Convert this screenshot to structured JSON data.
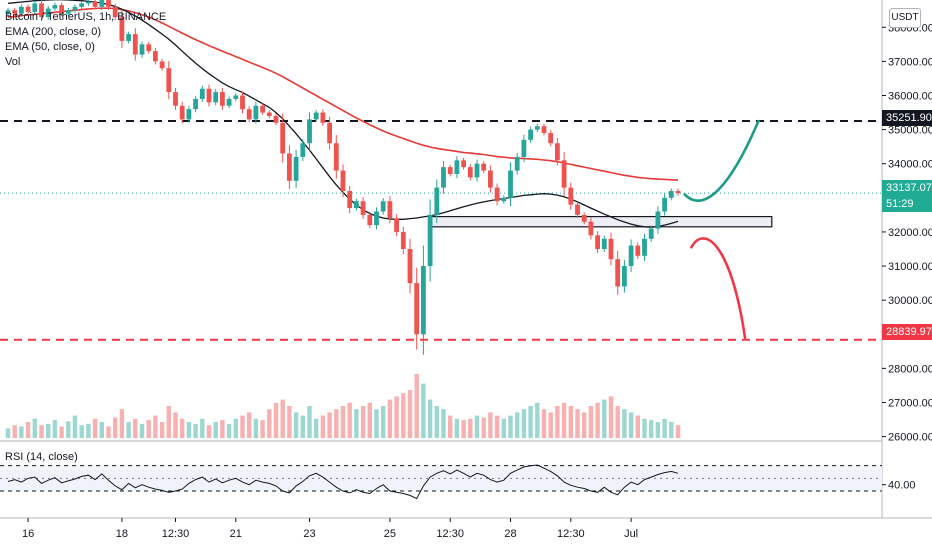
{
  "header": {
    "title": "Bitcoin / TetherUS, 1h, BINANCE",
    "ema200": "EMA (200, close, 0)",
    "ema50": "EMA (50, close, 0)",
    "vol": "Vol",
    "currency": "USDT"
  },
  "rsi_panel": {
    "title": "RSI (14, close)",
    "level_label": "40.00"
  },
  "price_labels": {
    "resistance": "35251.90",
    "current": "33137.07",
    "countdown": "51:29",
    "support": "28839.97"
  },
  "colors": {
    "up": "#26a69a",
    "down": "#ef5350",
    "ema200": "#e53935",
    "ema50": "#131722",
    "rsi": "#131722",
    "bull_path": "#1b9b88",
    "bear_path": "#f23645",
    "current_line": "#26a69a",
    "resistance_line": "#131722",
    "support_line": "#f23645"
  },
  "chart_data": {
    "type": "candlestick",
    "symbol": "BTCUSDT",
    "timeframe": "1h",
    "ylim": [
      25900,
      38800
    ],
    "y_ticks": [
      26000,
      27000,
      28000,
      29000,
      30000,
      31000,
      32000,
      33000,
      34000,
      35000,
      36000,
      37000,
      38000
    ],
    "y_tick_labels": [
      "26000.00",
      "27000.00",
      "28000.00",
      "29000.00",
      "30000.00",
      "31000.00",
      "32000.00",
      "33000.00",
      "34000.00",
      "35000.00",
      "36000.00",
      "37000.00",
      "38000.00"
    ],
    "x_ticks": [
      {
        "label": "16",
        "i": 3
      },
      {
        "label": "18",
        "i": 17
      },
      {
        "label": "12:30",
        "i": 25
      },
      {
        "label": "21",
        "i": 34
      },
      {
        "label": "23",
        "i": 45
      },
      {
        "label": "25",
        "i": 57
      },
      {
        "label": "12:30",
        "i": 66
      },
      {
        "label": "28",
        "i": 75
      },
      {
        "label": "12:30",
        "i": 84
      },
      {
        "label": "Jul",
        "i": 93
      }
    ],
    "series": [
      {
        "name": "BTCUSDT",
        "close": [
          38500,
          38400,
          38600,
          38450,
          38700,
          38300,
          38550,
          38650,
          38400,
          38500,
          38600,
          38700,
          38750,
          38600,
          38900,
          38600,
          38300,
          37600,
          37800,
          37200,
          37500,
          37300,
          37000,
          36800,
          36100,
          35700,
          35300,
          35600,
          35900,
          36200,
          35800,
          36100,
          35700,
          35900,
          36000,
          35600,
          35300,
          35700,
          35500,
          35400,
          35200,
          34300,
          33500,
          34200,
          34600,
          35300,
          35500,
          35200,
          34600,
          33800,
          33200,
          32700,
          32900,
          32500,
          32200,
          32600,
          32900,
          32400,
          32000,
          31500,
          30500,
          29000,
          31000,
          32500,
          33300,
          33900,
          33700,
          34100,
          33900,
          33600,
          34000,
          33800,
          33300,
          32900,
          33000,
          33800,
          34200,
          34700,
          35000,
          35100,
          34900,
          34600,
          34100,
          33300,
          32800,
          32500,
          32300,
          31900,
          31500,
          31800,
          31200,
          30400,
          31000,
          31600,
          31300,
          31800,
          32100,
          32600,
          33000,
          33200,
          33137
        ]
      },
      {
        "name": "EMA (200, close, 0)",
        "values": [
          38300,
          38320,
          38340,
          38360,
          38380,
          38400,
          38420,
          38440,
          38460,
          38480,
          38500,
          38520,
          38540,
          38550,
          38560,
          38560,
          38550,
          38520,
          38480,
          38430,
          38370,
          38300,
          38220,
          38130,
          38030,
          37930,
          37830,
          37730,
          37640,
          37550,
          37460,
          37380,
          37300,
          37220,
          37140,
          37060,
          36980,
          36900,
          36820,
          36740,
          36650,
          36550,
          36440,
          36330,
          36220,
          36110,
          36000,
          35890,
          35780,
          35670,
          35560,
          35450,
          35340,
          35240,
          35140,
          35050,
          34960,
          34880,
          34810,
          34740,
          34670,
          34600,
          34540,
          34490,
          34450,
          34420,
          34390,
          34360,
          34330,
          34310,
          34290,
          34270,
          34240,
          34210,
          34190,
          34170,
          34160,
          34150,
          34140,
          34130,
          34110,
          34090,
          34060,
          34020,
          33980,
          33940,
          33900,
          33860,
          33820,
          33780,
          33740,
          33700,
          33660,
          33630,
          33600,
          33580,
          33560,
          33550,
          33540,
          33530,
          33520
        ]
      },
      {
        "name": "EMA (50, close, 0)",
        "values": [
          38700,
          38720,
          38740,
          38760,
          38780,
          38790,
          38800,
          38810,
          38810,
          38800,
          38790,
          38780,
          38760,
          38740,
          38710,
          38670,
          38610,
          38530,
          38440,
          38330,
          38210,
          38080,
          37940,
          37800,
          37650,
          37480,
          37300,
          37120,
          36950,
          36790,
          36640,
          36500,
          36370,
          36260,
          36170,
          36090,
          35980,
          35870,
          35760,
          35650,
          35500,
          35320,
          35100,
          34880,
          34640,
          34400,
          34140,
          33880,
          33620,
          33380,
          33160,
          32960,
          32790,
          32650,
          32540,
          32460,
          32410,
          32380,
          32370,
          32370,
          32390,
          32410,
          32440,
          32470,
          32510,
          32560,
          32620,
          32680,
          32740,
          32790,
          32840,
          32880,
          32920,
          32950,
          32980,
          33010,
          33040,
          33070,
          33090,
          33110,
          33120,
          33110,
          33080,
          33030,
          32960,
          32880,
          32790,
          32700,
          32610,
          32520,
          32440,
          32360,
          32290,
          32230,
          32180,
          32150,
          32140,
          32160,
          32200,
          32250,
          32310
        ]
      },
      {
        "name": "Vol",
        "values": [
          0.15,
          0.2,
          0.18,
          0.25,
          0.3,
          0.2,
          0.22,
          0.28,
          0.18,
          0.26,
          0.35,
          0.2,
          0.22,
          0.3,
          0.25,
          0.18,
          0.32,
          0.45,
          0.25,
          0.3,
          0.22,
          0.28,
          0.35,
          0.25,
          0.5,
          0.4,
          0.3,
          0.25,
          0.22,
          0.3,
          0.2,
          0.25,
          0.28,
          0.22,
          0.3,
          0.35,
          0.4,
          0.3,
          0.28,
          0.45,
          0.55,
          0.6,
          0.5,
          0.4,
          0.35,
          0.5,
          0.3,
          0.35,
          0.4,
          0.45,
          0.5,
          0.55,
          0.45,
          0.5,
          0.55,
          0.45,
          0.5,
          0.6,
          0.65,
          0.7,
          0.75,
          1.0,
          0.85,
          0.6,
          0.5,
          0.45,
          0.35,
          0.3,
          0.28,
          0.3,
          0.35,
          0.32,
          0.4,
          0.35,
          0.3,
          0.35,
          0.4,
          0.45,
          0.5,
          0.55,
          0.45,
          0.4,
          0.5,
          0.55,
          0.5,
          0.45,
          0.4,
          0.5,
          0.55,
          0.6,
          0.65,
          0.5,
          0.45,
          0.4,
          0.35,
          0.3,
          0.28,
          0.25,
          0.3,
          0.25,
          0.2
        ]
      },
      {
        "name": "RSI (14, close)",
        "values": [
          45,
          48,
          44,
          50,
          52,
          42,
          47,
          51,
          43,
          46,
          49,
          53,
          55,
          48,
          57,
          47,
          38,
          32,
          42,
          35,
          40,
          36,
          33,
          31,
          28,
          30,
          33,
          42,
          48,
          52,
          44,
          49,
          43,
          47,
          50,
          44,
          40,
          47,
          44,
          42,
          38,
          30,
          27,
          38,
          45,
          54,
          58,
          52,
          44,
          36,
          30,
          27,
          32,
          28,
          26,
          34,
          40,
          30,
          28,
          26,
          23,
          18,
          38,
          52,
          58,
          62,
          57,
          63,
          58,
          52,
          58,
          55,
          48,
          44,
          47,
          58,
          63,
          68,
          70,
          71,
          66,
          61,
          54,
          44,
          39,
          36,
          34,
          30,
          28,
          36,
          28,
          24,
          36,
          44,
          40,
          48,
          52,
          56,
          59,
          61,
          58
        ]
      }
    ],
    "levels": {
      "resistance": 35251.9,
      "support": 28839.97,
      "current": 33137.07,
      "zone": [
        32150,
        32450
      ],
      "rsi_band": [
        30,
        70
      ],
      "rsi_mid": 50
    },
    "annotations": [
      {
        "type": "bullish-projection",
        "points": [
          [
            101,
            33100
          ],
          [
            104,
            32500
          ],
          [
            108,
            33400
          ],
          [
            112,
            35250
          ]
        ]
      },
      {
        "type": "bearish-projection",
        "points": [
          [
            102,
            31550
          ],
          [
            104,
            32250
          ],
          [
            108,
            31600
          ],
          [
            110,
            28900
          ]
        ]
      }
    ]
  }
}
